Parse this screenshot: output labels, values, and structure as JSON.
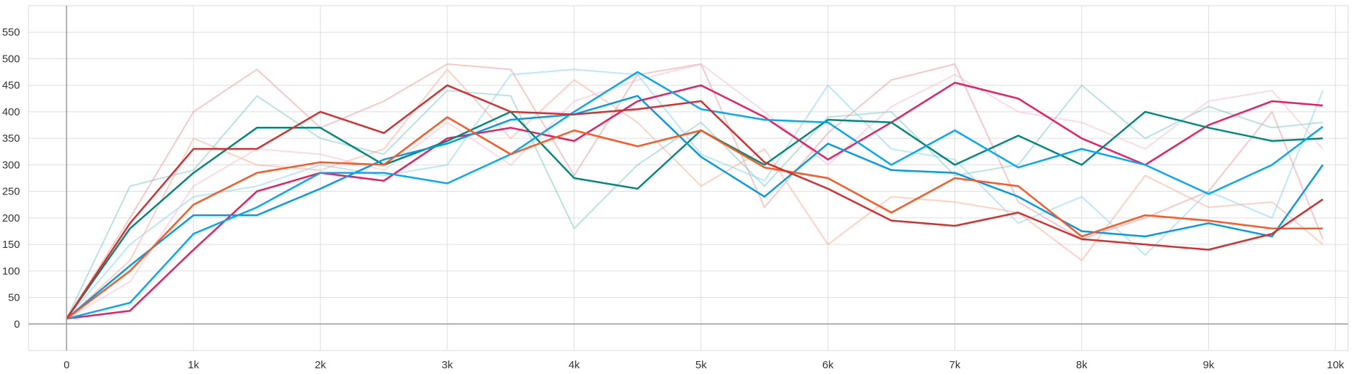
{
  "chart_data": {
    "type": "line",
    "title": "",
    "xlabel": "",
    "ylabel": "",
    "xlim": [
      -300,
      10100
    ],
    "ylim": [
      -50,
      600
    ],
    "x_ticks": [
      0,
      1000,
      2000,
      3000,
      4000,
      5000,
      6000,
      7000,
      8000,
      9000,
      10000
    ],
    "x_tick_labels": [
      "0",
      "1k",
      "2k",
      "3k",
      "4k",
      "5k",
      "6k",
      "7k",
      "8k",
      "9k",
      "10k"
    ],
    "y_ticks": [
      0,
      50,
      100,
      150,
      200,
      250,
      300,
      350,
      400,
      450,
      500,
      550
    ],
    "y_tick_labels": [
      "0",
      "50",
      "100",
      "150",
      "200",
      "250",
      "300",
      "350",
      "400",
      "450",
      "500",
      "550"
    ],
    "grid": true,
    "legend": "none",
    "x": [
      0,
      500,
      1000,
      1500,
      2000,
      2500,
      3000,
      3500,
      4000,
      4500,
      5000,
      5500,
      6000,
      6500,
      7000,
      7500,
      8000,
      8500,
      9000,
      9500,
      9900
    ],
    "series": [
      {
        "color": "#e91e63",
        "values": [
          10,
          25,
          140,
          250,
          285,
          270,
          350,
          370,
          345,
          420,
          450,
          390,
          310,
          380,
          455,
          425,
          350,
          300,
          375,
          420,
          412
        ]
      },
      {
        "color": "#00897b",
        "values": [
          10,
          180,
          285,
          370,
          370,
          300,
          345,
          400,
          275,
          255,
          365,
          300,
          385,
          380,
          300,
          355,
          300,
          400,
          370,
          345,
          350
        ]
      },
      {
        "color": "#039be5",
        "values": [
          10,
          110,
          205,
          205,
          255,
          310,
          340,
          385,
          395,
          430,
          315,
          240,
          340,
          290,
          285,
          240,
          175,
          165,
          190,
          165,
          300
        ]
      },
      {
        "color": "#03a9f4",
        "values": [
          10,
          40,
          170,
          220,
          285,
          285,
          265,
          320,
          400,
          475,
          405,
          385,
          380,
          300,
          365,
          295,
          330,
          300,
          245,
          300,
          372
        ]
      },
      {
        "color": "#ff5722",
        "values": [
          10,
          100,
          225,
          285,
          305,
          300,
          390,
          320,
          365,
          335,
          365,
          295,
          275,
          210,
          275,
          260,
          165,
          205,
          195,
          180,
          180
        ]
      },
      {
        "color": "#d32f2f",
        "values": [
          10,
          190,
          330,
          330,
          400,
          360,
          450,
          400,
          395,
          405,
          420,
          305,
          255,
          195,
          185,
          210,
          160,
          150,
          140,
          170,
          235
        ]
      }
    ],
    "background_series": [
      {
        "color": "#ef9a9a",
        "values": [
          10,
          200,
          400,
          480,
          370,
          420,
          490,
          480,
          280,
          470,
          490,
          220,
          360,
          460,
          490,
          230,
          160,
          200,
          250,
          400,
          160
        ]
      },
      {
        "color": "#80cbc4",
        "values": [
          10,
          260,
          290,
          430,
          350,
          320,
          440,
          430,
          180,
          300,
          380,
          260,
          390,
          400,
          280,
          300,
          450,
          350,
          410,
          370,
          380
        ]
      },
      {
        "color": "#81d4fa",
        "values": [
          10,
          150,
          240,
          260,
          300,
          280,
          300,
          470,
          480,
          470,
          320,
          270,
          450,
          330,
          310,
          190,
          240,
          130,
          250,
          200,
          440
        ]
      },
      {
        "color": "#ffab91",
        "values": [
          10,
          120,
          350,
          300,
          290,
          330,
          480,
          350,
          460,
          380,
          260,
          330,
          150,
          240,
          230,
          210,
          120,
          280,
          220,
          230,
          150
        ]
      },
      {
        "color": "#f8bbd0",
        "values": [
          10,
          80,
          260,
          330,
          320,
          290,
          380,
          300,
          420,
          460,
          490,
          400,
          300,
          410,
          470,
          400,
          380,
          330,
          420,
          440,
          330
        ]
      }
    ]
  }
}
